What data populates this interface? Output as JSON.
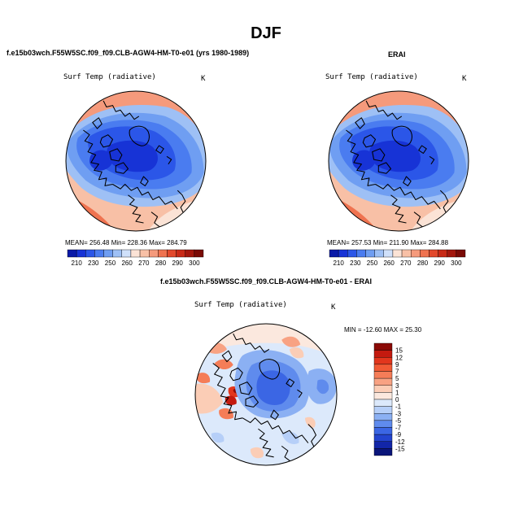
{
  "title": "DJF",
  "panels": [
    {
      "id": "model",
      "heading": "f.e15b03wch.F55W5SC.f09_f09.CLB-AGW4-HM-T0-e01 (yrs 1980-1989)",
      "variable": "Surf Temp (radiative)",
      "units": "K",
      "stats": "MEAN= 256.48   Min= 228.36   Max= 284.79",
      "colorbar": {
        "labels": [
          "210",
          "230",
          "250",
          "260",
          "270",
          "280",
          "290",
          "300"
        ],
        "colors": [
          "#0a1aa8",
          "#1733d6",
          "#2b56e8",
          "#4a7cf0",
          "#6f9ef2",
          "#9ec0f5",
          "#cfe0fa",
          "#fbe3d6",
          "#f8c0a6",
          "#f59a7c",
          "#ef7350",
          "#e2492c",
          "#c82a17",
          "#a3170d",
          "#7a0b06"
        ]
      }
    },
    {
      "id": "erai",
      "heading": "ERAI",
      "variable": "Surf Temp (radiative)",
      "units": "K",
      "stats": "MEAN= 257.53   Min= 211.90   Max= 284.88",
      "colorbar": {
        "labels": [
          "210",
          "230",
          "250",
          "260",
          "270",
          "280",
          "290",
          "300"
        ],
        "colors": [
          "#0a1aa8",
          "#1733d6",
          "#2b56e8",
          "#4a7cf0",
          "#6f9ef2",
          "#9ec0f5",
          "#cfe0fa",
          "#fbe3d6",
          "#f8c0a6",
          "#f59a7c",
          "#ef7350",
          "#e2492c",
          "#c82a17",
          "#a3170d",
          "#7a0b06"
        ]
      }
    },
    {
      "id": "diff",
      "heading": "f.e15b03wch.F55W5SC.f09_f09.CLB-AGW4-HM-T0-e01 - ERAI",
      "variable": "Surf Temp (radiative)",
      "units": "K",
      "stats": "MIN = -12.60 MAX =  25.30",
      "colorbar": {
        "labels": [
          "15",
          "12",
          "9",
          "7",
          "5",
          "3",
          "1",
          "0",
          "-1",
          "-3",
          "-5",
          "-7",
          "-9",
          "-12",
          "-15"
        ],
        "colors": [
          "#8b0a06",
          "#c41a0f",
          "#e2361d",
          "#f15a35",
          "#f57d58",
          "#f8a283",
          "#fbcdb6",
          "#fbe8de",
          "#dce9fb",
          "#b6cff8",
          "#8bb0f3",
          "#5f8bed",
          "#3b66e4",
          "#2344cf",
          "#1226a8",
          "#0a157a"
        ]
      }
    }
  ]
}
